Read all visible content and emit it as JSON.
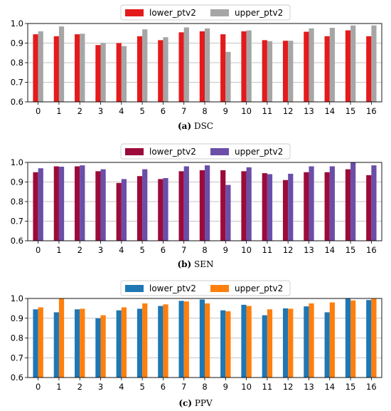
{
  "chart_data": [
    {
      "type": "bar",
      "categories": [
        "0",
        "1",
        "2",
        "3",
        "4",
        "5",
        "6",
        "7",
        "8",
        "9",
        "10",
        "11",
        "12",
        "13",
        "14",
        "15",
        "16"
      ],
      "series": [
        {
          "name": "lower_ptv2",
          "color": "#e41a1c",
          "values": [
            0.945,
            0.935,
            0.945,
            0.89,
            0.9,
            0.935,
            0.915,
            0.955,
            0.96,
            0.945,
            0.96,
            0.915,
            0.912,
            0.958,
            0.935,
            0.965,
            0.935
          ]
        },
        {
          "name": "upper_ptv2",
          "color": "#a6a6a6",
          "values": [
            0.96,
            0.985,
            0.948,
            0.9,
            0.885,
            0.97,
            0.93,
            0.98,
            0.975,
            0.855,
            0.965,
            0.91,
            0.912,
            0.975,
            0.978,
            0.99,
            0.99
          ]
        }
      ],
      "ylim": [
        0.6,
        1.0
      ],
      "yticks": [
        "0.6",
        "0.7",
        "0.8",
        "0.9",
        "1.0"
      ],
      "grid": true,
      "legend": "top-center",
      "caption_label": "(a)",
      "caption_text": "DSC"
    },
    {
      "type": "bar",
      "categories": [
        "0",
        "1",
        "2",
        "3",
        "4",
        "5",
        "6",
        "7",
        "8",
        "9",
        "10",
        "11",
        "12",
        "13",
        "14",
        "15",
        "16"
      ],
      "series": [
        {
          "name": "lower_ptv2",
          "color": "#9b0b3a",
          "values": [
            0.95,
            0.98,
            0.98,
            0.955,
            0.895,
            0.93,
            0.915,
            0.955,
            0.96,
            0.96,
            0.955,
            0.945,
            0.91,
            0.95,
            0.95,
            0.965,
            0.935
          ]
        },
        {
          "name": "upper_ptv2",
          "color": "#6b4ea8",
          "values": [
            0.97,
            0.978,
            0.985,
            0.965,
            0.915,
            0.965,
            0.92,
            0.98,
            0.985,
            0.885,
            0.975,
            0.94,
            0.942,
            0.98,
            0.98,
            1.0,
            0.985
          ]
        }
      ],
      "ylim": [
        0.6,
        1.0
      ],
      "yticks": [
        "0.6",
        "0.7",
        "0.8",
        "0.9",
        "1.0"
      ],
      "grid": true,
      "legend": "top-center",
      "caption_label": "(b)",
      "caption_text": "SEN"
    },
    {
      "type": "bar",
      "categories": [
        "0",
        "1",
        "2",
        "3",
        "4",
        "5",
        "6",
        "7",
        "8",
        "9",
        "10",
        "11",
        "12",
        "13",
        "14",
        "15",
        "16"
      ],
      "series": [
        {
          "name": "lower_ptv2",
          "color": "#1f77b4",
          "values": [
            0.945,
            0.93,
            0.945,
            0.9,
            0.94,
            0.948,
            0.962,
            0.988,
            0.995,
            0.94,
            0.968,
            0.915,
            0.95,
            0.96,
            0.93,
            1.0,
            0.992
          ]
        },
        {
          "name": "upper_ptv2",
          "color": "#ff7f0e",
          "values": [
            0.955,
            0.998,
            0.948,
            0.915,
            0.955,
            0.975,
            0.97,
            0.985,
            0.975,
            0.935,
            0.962,
            0.945,
            0.948,
            0.975,
            0.98,
            0.99,
            0.998
          ]
        }
      ],
      "ylim": [
        0.6,
        1.0
      ],
      "yticks": [
        "0.6",
        "0.7",
        "0.8",
        "0.9",
        "1.0"
      ],
      "grid": true,
      "legend": "top-center",
      "caption_label": "(c)",
      "caption_text": "PPV"
    }
  ]
}
